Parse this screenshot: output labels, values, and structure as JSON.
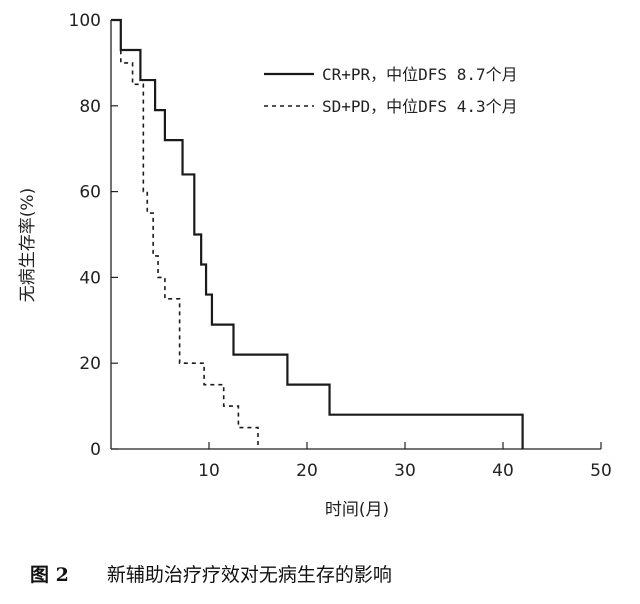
{
  "chart_data": {
    "type": "line",
    "step": true,
    "xlabel": "时间(月)",
    "ylabel": "无病生存率(%)",
    "xlim": [
      0,
      50
    ],
    "ylim": [
      0,
      100
    ],
    "x_ticks": [
      10,
      20,
      30,
      40,
      50
    ],
    "y_ticks": [
      0,
      20,
      40,
      60,
      80,
      100
    ],
    "legend_position": "top-right",
    "grid": false,
    "series": [
      {
        "name": "CR+PR，中位DFS 8.7个月",
        "style": "solid",
        "x": [
          0,
          1.0,
          3.0,
          4.5,
          5.5,
          7.3,
          8.5,
          9.2,
          9.7,
          10.3,
          12.5,
          18.0,
          22.3,
          42.0,
          42.0
        ],
        "y": [
          100,
          93,
          86,
          79,
          72,
          64,
          50,
          43,
          36,
          29,
          22,
          15,
          8,
          8,
          0
        ]
      },
      {
        "name": "SD+PD，中位DFS 4.3个月",
        "style": "dashed",
        "x": [
          0,
          1.0,
          2.2,
          3.3,
          3.7,
          4.3,
          4.8,
          5.5,
          7.0,
          9.5,
          11.5,
          13.0,
          15.0,
          15.0
        ],
        "y": [
          100,
          90,
          85,
          60,
          55,
          45,
          40,
          35,
          20,
          15,
          10,
          5,
          5,
          0
        ]
      }
    ]
  },
  "caption": {
    "figure_number": "图 2",
    "text": "新辅助治疗疗效对无病生存的影响"
  }
}
